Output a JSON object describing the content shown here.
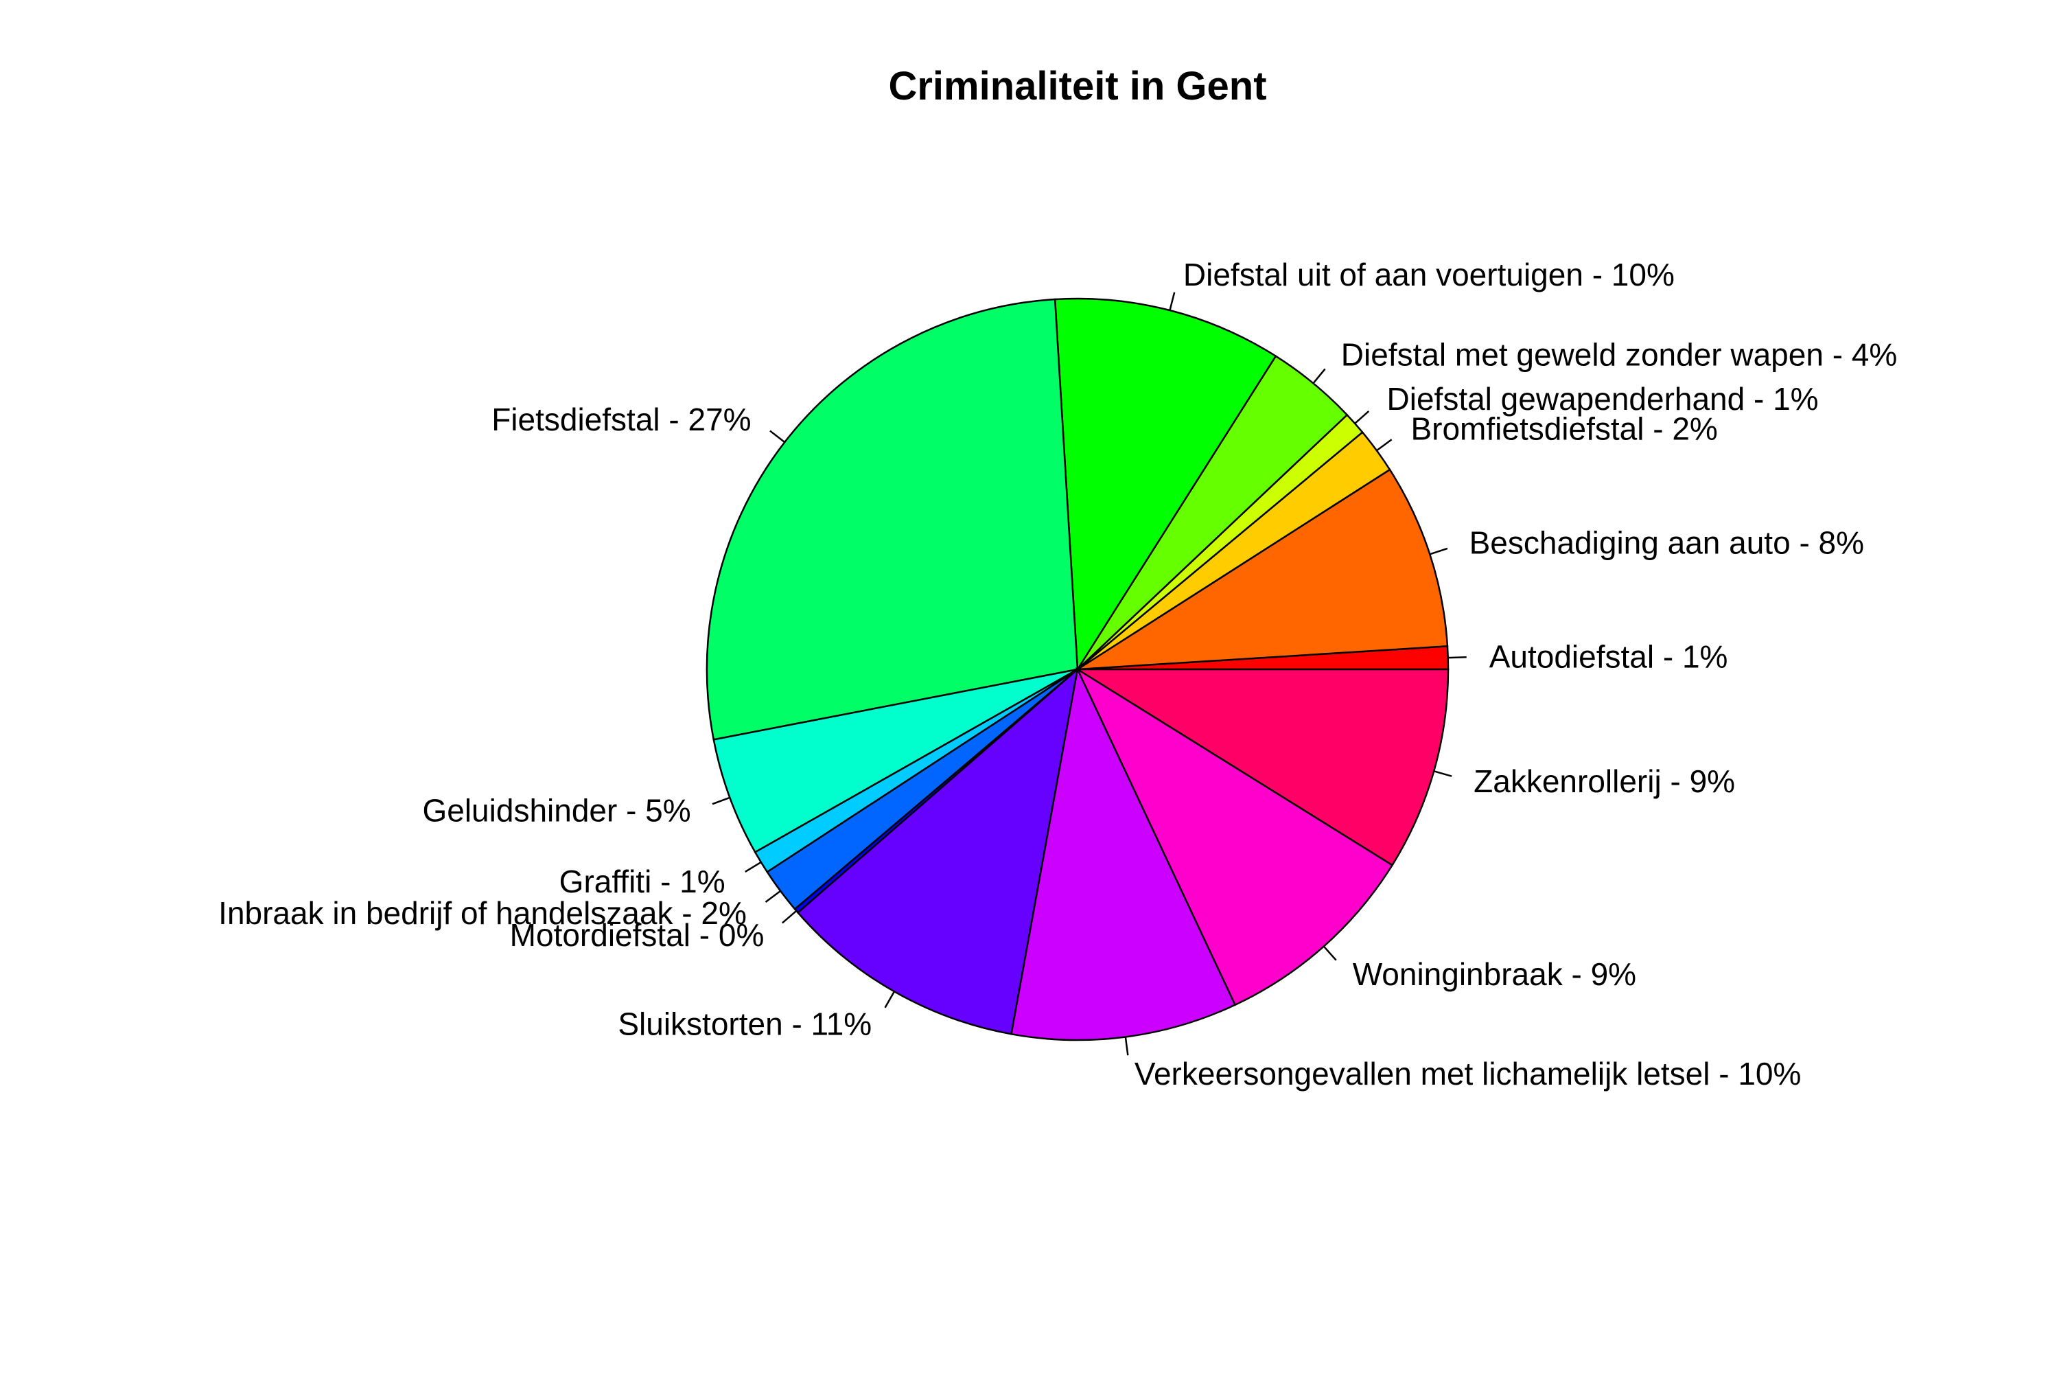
{
  "chart_data": {
    "type": "pie",
    "title": "Criminaliteit in Gent",
    "start_angle_deg": 0,
    "direction": "counterclockwise",
    "slices": [
      {
        "label": "Autodiefstal - 1%",
        "value": 1.0,
        "color": "#FF0000"
      },
      {
        "label": "Beschadiging aan auto - 8%",
        "value": 8.1,
        "color": "#FF6600"
      },
      {
        "label": "Bromfietsdiefstal - 2%",
        "value": 2.0,
        "color": "#FFCC00"
      },
      {
        "label": "Diefstal gewapenderhand - 1%",
        "value": 1.0,
        "color": "#CCFF00"
      },
      {
        "label": "Diefstal met geweld zonder wapen - 4%",
        "value": 4.0,
        "color": "#66FF00"
      },
      {
        "label": "Diefstal uit of aan voertuigen - 10%",
        "value": 10.0,
        "color": "#00FF00"
      },
      {
        "label": "Fietsdiefstal - 27%",
        "value": 27.2,
        "color": "#00FF66"
      },
      {
        "label": "Geluidshinder - 5%",
        "value": 5.2,
        "color": "#00FFCC"
      },
      {
        "label": "Graffiti - 1%",
        "value": 1.0,
        "color": "#00CCFF"
      },
      {
        "label": "Inbraak in bedrijf of handelszaak - 2%",
        "value": 2.0,
        "color": "#0066FF"
      },
      {
        "label": "Motordiefstal - 0%",
        "value": 0.2,
        "color": "#0000FF"
      },
      {
        "label": "Sluikstorten - 11%",
        "value": 10.8,
        "color": "#6600FF"
      },
      {
        "label": "Verkeersongevallen met lichamelijk letsel - 10%",
        "value": 9.9,
        "color": "#CC00FF"
      },
      {
        "label": "Woninginbraak - 9%",
        "value": 9.2,
        "color": "#FF00CC"
      },
      {
        "label": "Zakkenrollerij - 9%",
        "value": 8.9,
        "color": "#FF0066"
      }
    ]
  }
}
